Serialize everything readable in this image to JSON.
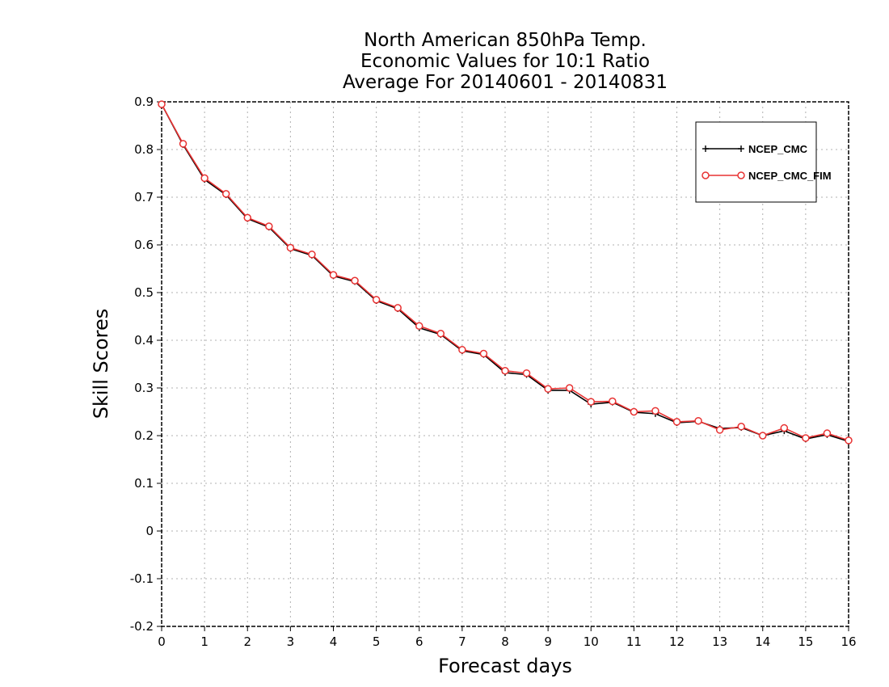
{
  "chart_data": {
    "type": "line",
    "title_lines": [
      "North American 850hPa Temp.",
      "Economic Values for 10:1 Ratio",
      "Average For 20140601 - 20140831"
    ],
    "xlabel": "Forecast days",
    "ylabel": "Skill Scores",
    "xlim": [
      0,
      16
    ],
    "ylim": [
      -0.2,
      0.9
    ],
    "xticks": [
      0,
      1,
      2,
      3,
      4,
      5,
      6,
      7,
      8,
      9,
      10,
      11,
      12,
      13,
      14,
      15,
      16
    ],
    "yticks": [
      -0.2,
      -0.1,
      0,
      0.1,
      0.2,
      0.3,
      0.4,
      0.5,
      0.6,
      0.7,
      0.8,
      0.9
    ],
    "ytick_labels": [
      "-0.2",
      "-0.1",
      "0",
      "0.1",
      "0.2",
      "0.3",
      "0.4",
      "0.5",
      "0.6",
      "0.7",
      "0.8",
      "0.9"
    ],
    "grid": true,
    "legend_position": "top-right",
    "x": [
      0,
      0.5,
      1,
      1.5,
      2,
      2.5,
      3,
      3.5,
      4,
      4.5,
      5,
      5.5,
      6,
      6.5,
      7,
      7.5,
      8,
      8.5,
      9,
      9.5,
      10,
      10.5,
      11,
      11.5,
      12,
      12.5,
      13,
      13.5,
      14,
      14.5,
      15,
      15.5,
      16
    ],
    "series": [
      {
        "name": "NCEP_CMC",
        "color": "#000000",
        "marker": "plus",
        "values": [
          0.895,
          0.81,
          0.737,
          0.705,
          0.655,
          0.637,
          0.592,
          0.578,
          0.535,
          0.523,
          0.483,
          0.466,
          0.426,
          0.412,
          0.378,
          0.37,
          0.332,
          0.328,
          0.295,
          0.295,
          0.266,
          0.27,
          0.249,
          0.246,
          0.227,
          0.23,
          0.215,
          0.217,
          0.2,
          0.21,
          0.193,
          0.202,
          0.188
        ]
      },
      {
        "name": "NCEP_CMC_FIM",
        "color": "#e83232",
        "marker": "circle",
        "values": [
          0.895,
          0.812,
          0.74,
          0.707,
          0.657,
          0.639,
          0.594,
          0.58,
          0.537,
          0.525,
          0.485,
          0.468,
          0.43,
          0.414,
          0.38,
          0.372,
          0.336,
          0.331,
          0.298,
          0.3,
          0.271,
          0.272,
          0.25,
          0.252,
          0.229,
          0.231,
          0.212,
          0.219,
          0.2,
          0.216,
          0.195,
          0.205,
          0.19
        ]
      }
    ]
  }
}
